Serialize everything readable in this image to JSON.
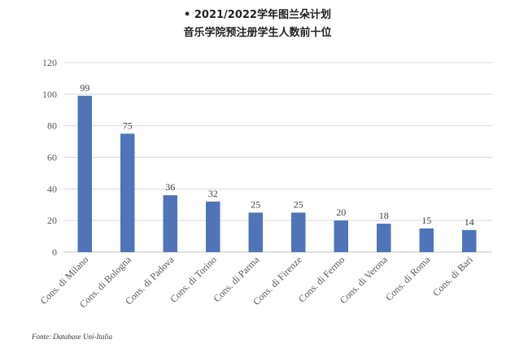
{
  "header": {
    "title": "• 2021/2022学年图兰朵计划",
    "subtitle": "音乐学院预注册学生人数前十位"
  },
  "chart_data": {
    "type": "bar",
    "categories": [
      "Cons. di Milano",
      "Cons. di Bologna",
      "Cons. di Padova",
      "Cons. di Torino",
      "Cons. di Parma",
      "Cons. di Firenze",
      "Cons. di Fermo",
      "Cons. di Verona",
      "Cons. di Roma",
      "Cons. di Bari"
    ],
    "values": [
      99,
      75,
      36,
      32,
      25,
      25,
      20,
      18,
      15,
      14
    ],
    "ylim": [
      0,
      120
    ],
    "yticks": [
      0,
      20,
      40,
      60,
      80,
      100,
      120
    ],
    "grid": true,
    "bar_color": "#4f74b8",
    "grid_color": "#d9d9d9",
    "text_color": "#595959"
  },
  "footer": {
    "source": "Fonte: Database Uni-Italia"
  }
}
